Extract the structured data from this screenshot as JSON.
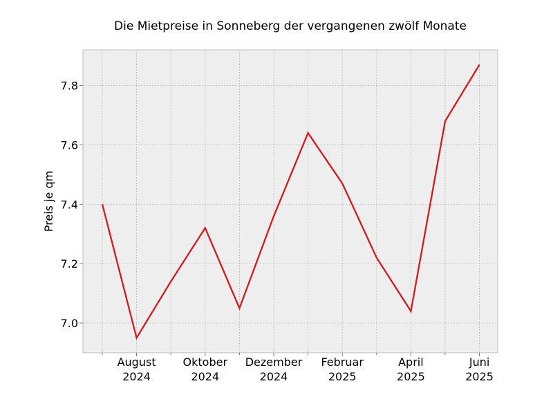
{
  "chart_data": {
    "type": "line",
    "title": "Die Mietpreise in Sonneberg der vergangenen zwölf Monate",
    "xlabel": "",
    "ylabel": "Preis je qm",
    "x": [
      "2024-07",
      "2024-08",
      "2024-09",
      "2024-10",
      "2024-11",
      "2024-12",
      "2025-01",
      "2025-02",
      "2025-03",
      "2025-04",
      "2025-05",
      "2025-06"
    ],
    "series": [
      {
        "values": [
          7.4,
          6.95,
          7.14,
          7.32,
          7.05,
          7.36,
          7.64,
          7.47,
          7.22,
          7.04,
          7.68,
          7.87
        ]
      }
    ],
    "x_tick_labels": [
      {
        "x": "2024-08",
        "line1": "August",
        "line2": "2024"
      },
      {
        "x": "2024-10",
        "line1": "Oktober",
        "line2": "2024"
      },
      {
        "x": "2024-12",
        "line1": "Dezember",
        "line2": "2024"
      },
      {
        "x": "2025-02",
        "line1": "Februar",
        "line2": "2025"
      },
      {
        "x": "2025-04",
        "line1": "April",
        "line2": "2025"
      },
      {
        "x": "2025-06",
        "line1": "Juni",
        "line2": "2025"
      }
    ],
    "y_ticks": [
      "7.0",
      "7.2",
      "7.4",
      "7.6",
      "7.8"
    ],
    "ylim": [
      6.9,
      7.92
    ],
    "grid": true,
    "colors": {
      "line": "#d7191c",
      "plot_background": "#eeeeee",
      "grid": "#b0b0b0",
      "frame": "#bcbcbc"
    }
  }
}
